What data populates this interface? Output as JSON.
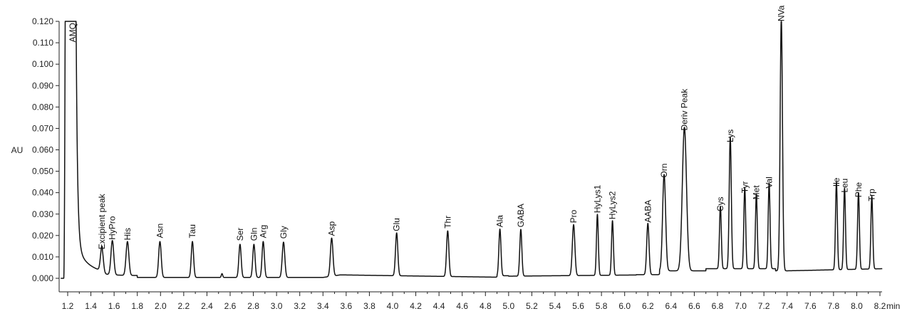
{
  "chart_data": {
    "type": "line",
    "title": "",
    "xlabel": "min",
    "ylabel": "AU",
    "xlim": [
      1.14,
      8.24
    ],
    "ylim": [
      -0.004,
      0.12
    ],
    "x_ticks": [
      1.2,
      1.4,
      1.6,
      1.8,
      2.0,
      2.2,
      2.4,
      2.6,
      2.8,
      3.0,
      3.2,
      3.4,
      3.6,
      3.8,
      4.0,
      4.2,
      4.4,
      4.6,
      4.8,
      5.0,
      5.2,
      5.4,
      5.6,
      5.8,
      6.0,
      6.2,
      6.4,
      6.6,
      6.8,
      7.0,
      7.2,
      7.4,
      7.6,
      7.8,
      8.0,
      8.2
    ],
    "x_tick_labels": [
      "1.2",
      "1.4",
      "1.6",
      "1.8",
      "2.0",
      "2.2",
      "2.4",
      "2.6",
      "2.8",
      "3.0",
      "3.2",
      "3.4",
      "3.6",
      "3.8",
      "4.0",
      "4.2",
      "4.4",
      "4.6",
      "4.8",
      "5.0",
      "5.2",
      "5.4",
      "5.6",
      "5.8",
      "6.0",
      "6.2",
      "6.4",
      "6.6",
      "6.8",
      "7.0",
      "7.2",
      "7.4",
      "7.6",
      "7.8",
      "8.0",
      "8.2"
    ],
    "y_ticks": [
      0.0,
      0.01,
      0.02,
      0.03,
      0.04,
      0.05,
      0.06,
      0.07,
      0.08,
      0.09,
      0.1,
      0.11,
      0.12
    ],
    "y_tick_labels": [
      "0.000",
      "0.010",
      "0.020",
      "0.030",
      "0.040",
      "0.050",
      "0.060",
      "0.070",
      "0.080",
      "0.090",
      "0.100",
      "0.110",
      "0.120"
    ],
    "grid": false,
    "trace_color": "#111111",
    "peaks": [
      {
        "label": "Excipient peak",
        "rt": 1.495,
        "height": 0.0115,
        "width": 0.012
      },
      {
        "label": "HyPro",
        "rt": 1.585,
        "height": 0.016,
        "width": 0.012
      },
      {
        "label": "His",
        "rt": 1.715,
        "height": 0.0158,
        "width": 0.012
      },
      {
        "label": "Asn",
        "rt": 1.995,
        "height": 0.0168,
        "width": 0.011
      },
      {
        "label": "Tau",
        "rt": 2.275,
        "height": 0.0168,
        "width": 0.01
      },
      {
        "label": "Ser",
        "rt": 2.685,
        "height": 0.0155,
        "width": 0.01
      },
      {
        "label": "Gln",
        "rt": 2.805,
        "height": 0.0155,
        "width": 0.01
      },
      {
        "label": "Arg",
        "rt": 2.885,
        "height": 0.0168,
        "width": 0.01
      },
      {
        "label": "Gly",
        "rt": 3.06,
        "height": 0.0165,
        "width": 0.011
      },
      {
        "label": "Asp",
        "rt": 3.475,
        "height": 0.0178,
        "width": 0.011
      },
      {
        "label": "Glu",
        "rt": 4.035,
        "height": 0.02,
        "width": 0.01
      },
      {
        "label": "Thr",
        "rt": 4.475,
        "height": 0.0213,
        "width": 0.01
      },
      {
        "label": "Ala",
        "rt": 4.925,
        "height": 0.0218,
        "width": 0.009
      },
      {
        "label": "GABA",
        "rt": 5.105,
        "height": 0.0218,
        "width": 0.009
      },
      {
        "label": "Pro",
        "rt": 5.56,
        "height": 0.0238,
        "width": 0.011
      },
      {
        "label": "HyLys1",
        "rt": 5.765,
        "height": 0.0285,
        "width": 0.008
      },
      {
        "label": "HyLys2",
        "rt": 5.895,
        "height": 0.0255,
        "width": 0.008
      },
      {
        "label": "AABA",
        "rt": 6.2,
        "height": 0.024,
        "width": 0.01
      },
      {
        "label": "Orn",
        "rt": 6.34,
        "height": 0.045,
        "width": 0.013
      },
      {
        "label": "Deriv Peak",
        "rt": 6.515,
        "height": 0.067,
        "width": 0.018
      },
      {
        "label": "Cys",
        "rt": 6.825,
        "height": 0.0292,
        "width": 0.008
      },
      {
        "label": "Lys",
        "rt": 6.91,
        "height": 0.0615,
        "width": 0.009
      },
      {
        "label": "Tyr",
        "rt": 7.035,
        "height": 0.0378,
        "width": 0.008
      },
      {
        "label": "Met",
        "rt": 7.135,
        "height": 0.0348,
        "width": 0.008
      },
      {
        "label": "Val",
        "rt": 7.245,
        "height": 0.04,
        "width": 0.008
      },
      {
        "label": "NVa",
        "rt": 7.35,
        "height": 0.118,
        "width": 0.01
      },
      {
        "label": "Ile",
        "rt": 7.825,
        "height": 0.0408,
        "width": 0.008
      },
      {
        "label": "Leu",
        "rt": 7.895,
        "height": 0.038,
        "width": 0.008
      },
      {
        "label": "Phe",
        "rt": 8.015,
        "height": 0.0358,
        "width": 0.008
      },
      {
        "label": "Trp",
        "rt": 8.13,
        "height": 0.034,
        "width": 0.008
      }
    ],
    "annotations": [
      {
        "label": "AMQ",
        "rt": 1.28,
        "height": 0.12
      }
    ]
  }
}
